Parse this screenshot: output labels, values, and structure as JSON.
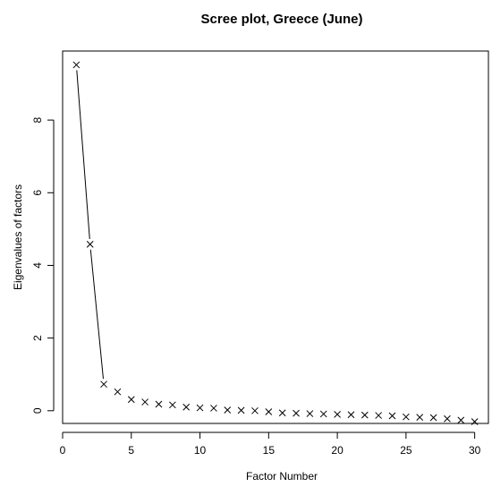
{
  "chart_data": {
    "type": "scatter",
    "title": "Scree plot, Greece (June)",
    "xlabel": "Factor Number",
    "ylabel": "Eigenvalues of factors",
    "xlim": [
      0,
      31
    ],
    "ylim": [
      -0.35,
      9.9
    ],
    "x_ticks": [
      0,
      5,
      10,
      15,
      20,
      25,
      30
    ],
    "y_ticks": [
      0,
      2,
      4,
      6,
      8
    ],
    "marker": "x",
    "grid": false,
    "connected_segment_factors": [
      1,
      2,
      3
    ],
    "series": [
      {
        "x": [
          1,
          2,
          3,
          4,
          5,
          6,
          7,
          8,
          9,
          10,
          11,
          12,
          13,
          14,
          15,
          16,
          17,
          18,
          19,
          20,
          21,
          22,
          23,
          24,
          25,
          26,
          27,
          28,
          29,
          30
        ],
        "values": [
          9.52,
          4.58,
          0.73,
          0.52,
          0.31,
          0.24,
          0.18,
          0.16,
          0.1,
          0.08,
          0.07,
          0.02,
          0.01,
          0.0,
          -0.03,
          -0.06,
          -0.07,
          -0.08,
          -0.09,
          -0.1,
          -0.11,
          -0.12,
          -0.13,
          -0.14,
          -0.17,
          -0.18,
          -0.19,
          -0.22,
          -0.26,
          -0.3
        ]
      }
    ]
  }
}
